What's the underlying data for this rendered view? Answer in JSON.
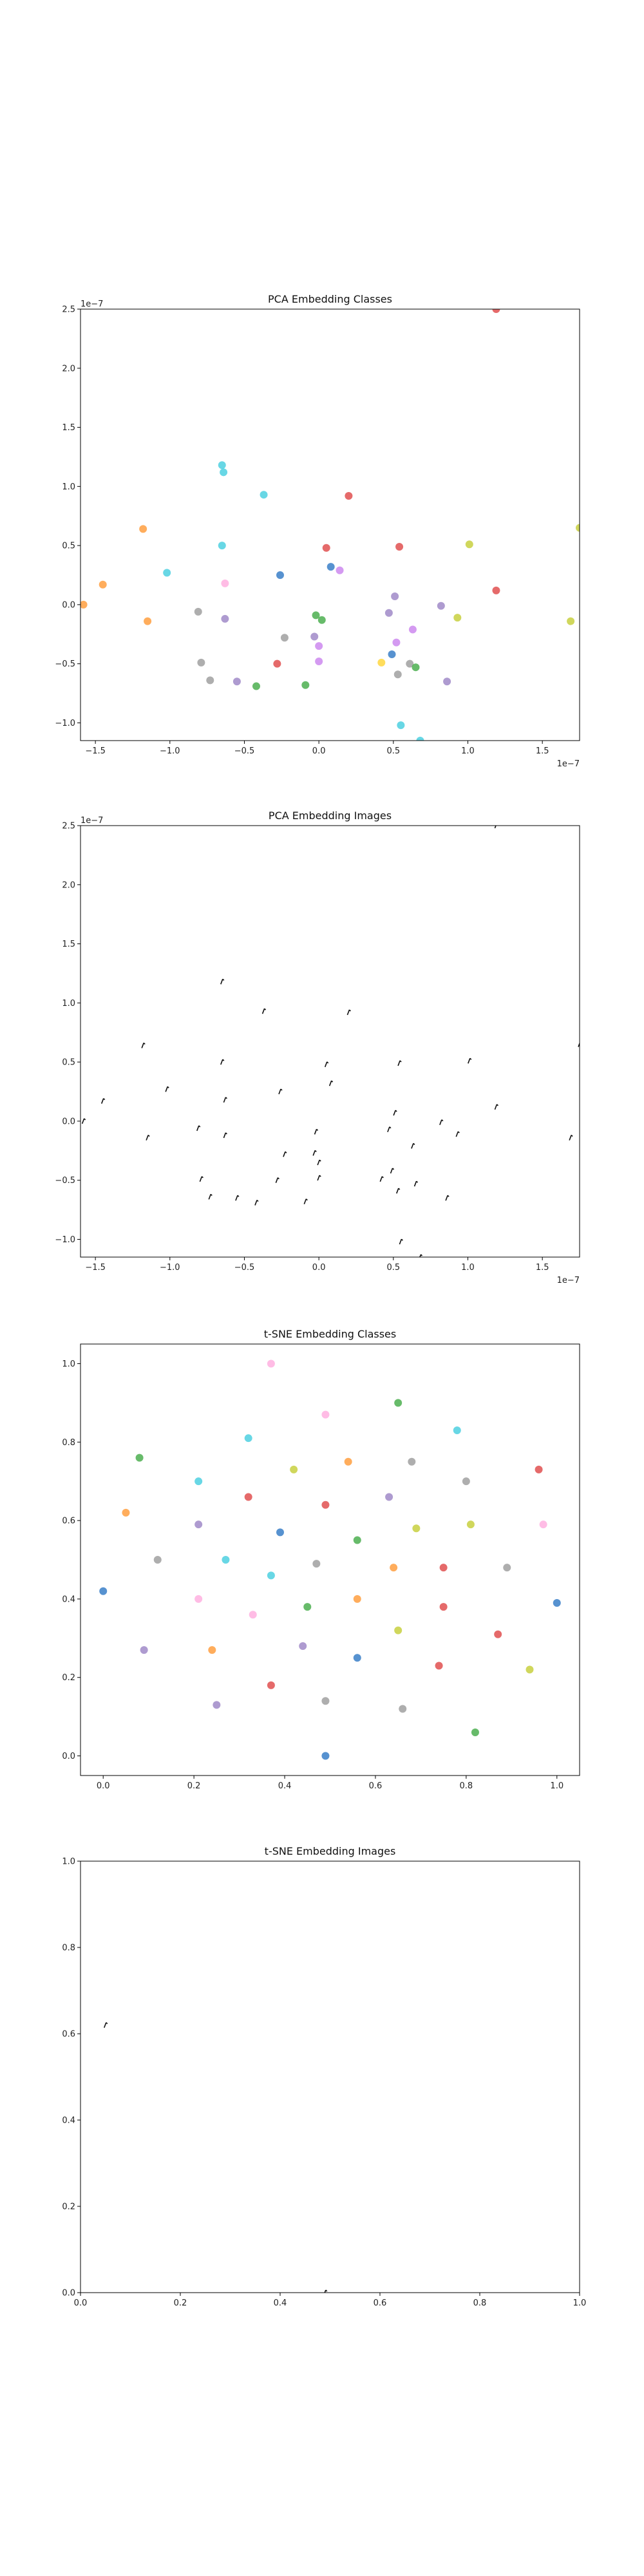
{
  "chart_data": [
    {
      "type": "scatter",
      "title": "PCA Embedding Classes",
      "xlabel": "",
      "ylabel": "",
      "xlim": [
        -1.6e-07,
        1.75e-07
      ],
      "ylim": [
        -1.15e-07,
        2.5e-07
      ],
      "xticks": [
        -1.5e-07,
        -1e-07,
        -5e-08,
        0,
        5e-08,
        1e-07,
        1.5e-07
      ],
      "xtick_labels": [
        "−1.5",
        "−1.0",
        "−0.5",
        "0.0",
        "0.5",
        "1.0",
        "1.5"
      ],
      "yticks": [
        -1e-07,
        -5e-08,
        0,
        5e-08,
        1e-07,
        1.5e-07,
        2e-07,
        2.5e-07
      ],
      "ytick_labels": [
        "−1.0",
        "−0.5",
        "0.0",
        "0.5",
        "1.0",
        "1.5",
        "2.0",
        "2.5"
      ],
      "x_offset_label": "1e−7",
      "y_offset_label": "1e−7",
      "grid": false,
      "marker": "dot",
      "points": [
        {
          "x": -1.58,
          "y": 0.0,
          "c": "#ff9f40"
        },
        {
          "x": -1.45,
          "y": 0.17,
          "c": "#ff9f40"
        },
        {
          "x": -1.18,
          "y": 0.64,
          "c": "#ff9f40"
        },
        {
          "x": -1.15,
          "y": -0.14,
          "c": "#ff9f40"
        },
        {
          "x": -1.02,
          "y": 0.27,
          "c": "#4dd0e1"
        },
        {
          "x": -0.81,
          "y": -0.06,
          "c": "#a0a0a0"
        },
        {
          "x": -0.79,
          "y": -0.49,
          "c": "#a0a0a0"
        },
        {
          "x": -0.73,
          "y": -0.64,
          "c": "#a0a0a0"
        },
        {
          "x": -0.65,
          "y": 1.18,
          "c": "#4dd0e1"
        },
        {
          "x": -0.64,
          "y": 1.12,
          "c": "#4dd0e1"
        },
        {
          "x": -0.65,
          "y": 0.5,
          "c": "#4dd0e1"
        },
        {
          "x": -0.63,
          "y": 0.18,
          "c": "#ffb0e0"
        },
        {
          "x": -0.63,
          "y": -0.12,
          "c": "#a089c8"
        },
        {
          "x": -0.55,
          "y": -0.65,
          "c": "#a089c8"
        },
        {
          "x": -0.42,
          "y": -0.69,
          "c": "#4caf50"
        },
        {
          "x": -0.37,
          "y": 0.93,
          "c": "#4dd0e1"
        },
        {
          "x": -0.28,
          "y": -0.5,
          "c": "#e05050"
        },
        {
          "x": -0.26,
          "y": 0.25,
          "c": "#3a7fc8"
        },
        {
          "x": -0.23,
          "y": -0.28,
          "c": "#a0a0a0"
        },
        {
          "x": -0.09,
          "y": -0.68,
          "c": "#4caf50"
        },
        {
          "x": -0.03,
          "y": -0.27,
          "c": "#a089c8"
        },
        {
          "x": -0.02,
          "y": -0.09,
          "c": "#4caf50"
        },
        {
          "x": 0.0,
          "y": -0.35,
          "c": "#cc88ee"
        },
        {
          "x": 0.0,
          "y": -0.48,
          "c": "#cc88ee"
        },
        {
          "x": 0.02,
          "y": -0.13,
          "c": "#4caf50"
        },
        {
          "x": 0.05,
          "y": 0.48,
          "c": "#e05050"
        },
        {
          "x": 0.08,
          "y": 0.32,
          "c": "#3a7fc8"
        },
        {
          "x": 0.14,
          "y": 0.29,
          "c": "#cc88ee"
        },
        {
          "x": 0.2,
          "y": 0.92,
          "c": "#e05050"
        },
        {
          "x": 0.42,
          "y": -0.49,
          "c": "#ffd740"
        },
        {
          "x": 0.47,
          "y": -0.07,
          "c": "#a089c8"
        },
        {
          "x": 0.49,
          "y": -0.42,
          "c": "#3a7fc8"
        },
        {
          "x": 0.51,
          "y": 0.07,
          "c": "#a089c8"
        },
        {
          "x": 0.52,
          "y": -0.32,
          "c": "#cc88ee"
        },
        {
          "x": 0.53,
          "y": -0.59,
          "c": "#a0a0a0"
        },
        {
          "x": 0.54,
          "y": 0.49,
          "c": "#e05050"
        },
        {
          "x": 0.55,
          "y": -1.02,
          "c": "#4dd0e1"
        },
        {
          "x": 0.61,
          "y": -0.5,
          "c": "#a0a0a0"
        },
        {
          "x": 0.63,
          "y": -0.21,
          "c": "#cc88ee"
        },
        {
          "x": 0.65,
          "y": -0.53,
          "c": "#4caf50"
        },
        {
          "x": 0.68,
          "y": -1.15,
          "c": "#4dd0e1"
        },
        {
          "x": 0.82,
          "y": -0.01,
          "c": "#a089c8"
        },
        {
          "x": 0.86,
          "y": -0.65,
          "c": "#a089c8"
        },
        {
          "x": 0.93,
          "y": -0.11,
          "c": "#c8d040"
        },
        {
          "x": 1.01,
          "y": 0.51,
          "c": "#c8d040"
        },
        {
          "x": 1.19,
          "y": 0.12,
          "c": "#e05050"
        },
        {
          "x": 1.19,
          "y": 2.5,
          "c": "#e05050"
        },
        {
          "x": 1.69,
          "y": -0.14,
          "c": "#c8d040"
        },
        {
          "x": 1.75,
          "y": 0.65,
          "c": "#c8d040"
        }
      ]
    },
    {
      "type": "scatter",
      "title": "PCA Embedding Images",
      "xlabel": "",
      "ylabel": "",
      "xlim": [
        -1.6e-07,
        1.75e-07
      ],
      "ylim": [
        -1.15e-07,
        2.5e-07
      ],
      "xticks": [
        -1.5e-07,
        -1e-07,
        -5e-08,
        0,
        5e-08,
        1e-07,
        1.5e-07
      ],
      "xtick_labels": [
        "−1.5",
        "−1.0",
        "−0.5",
        "0.0",
        "0.5",
        "1.0",
        "1.5"
      ],
      "yticks": [
        -1e-07,
        -5e-08,
        0,
        5e-08,
        1e-07,
        1.5e-07,
        2e-07,
        2.5e-07
      ],
      "ytick_labels": [
        "−1.0",
        "−0.5",
        "0.0",
        "0.5",
        "1.0",
        "1.5",
        "2.0",
        "2.5"
      ],
      "x_offset_label": "1e−7",
      "y_offset_label": "1e−7",
      "grid": false,
      "marker": "image-glyph",
      "points": [
        {
          "x": -1.58,
          "y": 0.0
        },
        {
          "x": -1.45,
          "y": 0.17
        },
        {
          "x": -1.18,
          "y": 0.64
        },
        {
          "x": -1.15,
          "y": -0.14
        },
        {
          "x": -1.02,
          "y": 0.27
        },
        {
          "x": -0.81,
          "y": -0.06
        },
        {
          "x": -0.79,
          "y": -0.49
        },
        {
          "x": -0.73,
          "y": -0.64
        },
        {
          "x": -0.65,
          "y": 1.18
        },
        {
          "x": -0.65,
          "y": 0.5
        },
        {
          "x": -0.63,
          "y": 0.18
        },
        {
          "x": -0.63,
          "y": -0.12
        },
        {
          "x": -0.55,
          "y": -0.65
        },
        {
          "x": -0.42,
          "y": -0.69
        },
        {
          "x": -0.37,
          "y": 0.93
        },
        {
          "x": -0.28,
          "y": -0.5
        },
        {
          "x": -0.26,
          "y": 0.25
        },
        {
          "x": -0.23,
          "y": -0.28
        },
        {
          "x": -0.09,
          "y": -0.68
        },
        {
          "x": -0.03,
          "y": -0.27
        },
        {
          "x": -0.02,
          "y": -0.09
        },
        {
          "x": 0.0,
          "y": -0.35
        },
        {
          "x": 0.0,
          "y": -0.48
        },
        {
          "x": 0.05,
          "y": 0.48
        },
        {
          "x": 0.08,
          "y": 0.32
        },
        {
          "x": 0.2,
          "y": 0.92
        },
        {
          "x": 0.42,
          "y": -0.49
        },
        {
          "x": 0.47,
          "y": -0.07
        },
        {
          "x": 0.49,
          "y": -0.42
        },
        {
          "x": 0.51,
          "y": 0.07
        },
        {
          "x": 0.53,
          "y": -0.59
        },
        {
          "x": 0.54,
          "y": 0.49
        },
        {
          "x": 0.55,
          "y": -1.02
        },
        {
          "x": 0.63,
          "y": -0.21
        },
        {
          "x": 0.65,
          "y": -0.53
        },
        {
          "x": 0.68,
          "y": -1.15
        },
        {
          "x": 0.82,
          "y": -0.01
        },
        {
          "x": 0.86,
          "y": -0.65
        },
        {
          "x": 0.93,
          "y": -0.11
        },
        {
          "x": 1.01,
          "y": 0.51
        },
        {
          "x": 1.19,
          "y": 0.12
        },
        {
          "x": 1.19,
          "y": 2.5
        },
        {
          "x": 1.69,
          "y": -0.14
        },
        {
          "x": 1.75,
          "y": 0.65
        }
      ]
    },
    {
      "type": "scatter",
      "title": "t-SNE Embedding Classes",
      "xlabel": "",
      "ylabel": "",
      "xlim": [
        -0.05,
        1.05
      ],
      "ylim": [
        -0.05,
        1.05
      ],
      "xticks": [
        0.0,
        0.2,
        0.4,
        0.6,
        0.8,
        1.0
      ],
      "xtick_labels": [
        "0.0",
        "0.2",
        "0.4",
        "0.6",
        "0.8",
        "1.0"
      ],
      "yticks": [
        0.0,
        0.2,
        0.4,
        0.6,
        0.8,
        1.0
      ],
      "ytick_labels": [
        "0.0",
        "0.2",
        "0.4",
        "0.6",
        "0.8",
        "1.0"
      ],
      "grid": false,
      "marker": "dot",
      "points": [
        {
          "x": 0.0,
          "y": 0.42,
          "c": "#3a7fc8"
        },
        {
          "x": 0.05,
          "y": 0.62,
          "c": "#ff9f40"
        },
        {
          "x": 0.08,
          "y": 0.76,
          "c": "#4caf50"
        },
        {
          "x": 0.09,
          "y": 0.27,
          "c": "#a089c8"
        },
        {
          "x": 0.12,
          "y": 0.5,
          "c": "#a0a0a0"
        },
        {
          "x": 0.21,
          "y": 0.59,
          "c": "#a089c8"
        },
        {
          "x": 0.21,
          "y": 0.4,
          "c": "#ffb0e0"
        },
        {
          "x": 0.21,
          "y": 0.7,
          "c": "#4dd0e1"
        },
        {
          "x": 0.24,
          "y": 0.27,
          "c": "#ff9f40"
        },
        {
          "x": 0.25,
          "y": 0.13,
          "c": "#a089c8"
        },
        {
          "x": 0.27,
          "y": 0.5,
          "c": "#4dd0e1"
        },
        {
          "x": 0.32,
          "y": 0.81,
          "c": "#4dd0e1"
        },
        {
          "x": 0.32,
          "y": 0.66,
          "c": "#e05050"
        },
        {
          "x": 0.33,
          "y": 0.36,
          "c": "#ffb0e0"
        },
        {
          "x": 0.37,
          "y": 1.0,
          "c": "#ffb0e0"
        },
        {
          "x": 0.37,
          "y": 0.46,
          "c": "#4dd0e1"
        },
        {
          "x": 0.37,
          "y": 0.18,
          "c": "#e05050"
        },
        {
          "x": 0.39,
          "y": 0.57,
          "c": "#3a7fc8"
        },
        {
          "x": 0.42,
          "y": 0.73,
          "c": "#c8d040"
        },
        {
          "x": 0.44,
          "y": 0.28,
          "c": "#a089c8"
        },
        {
          "x": 0.45,
          "y": 0.38,
          "c": "#4caf50"
        },
        {
          "x": 0.47,
          "y": 0.49,
          "c": "#a0a0a0"
        },
        {
          "x": 0.49,
          "y": 0.87,
          "c": "#ffb0e0"
        },
        {
          "x": 0.49,
          "y": 0.64,
          "c": "#e05050"
        },
        {
          "x": 0.49,
          "y": 0.14,
          "c": "#a0a0a0"
        },
        {
          "x": 0.49,
          "y": 0.0,
          "c": "#3a7fc8"
        },
        {
          "x": 0.54,
          "y": 0.75,
          "c": "#ff9f40"
        },
        {
          "x": 0.56,
          "y": 0.55,
          "c": "#4caf50"
        },
        {
          "x": 0.56,
          "y": 0.4,
          "c": "#ff9f40"
        },
        {
          "x": 0.56,
          "y": 0.25,
          "c": "#3a7fc8"
        },
        {
          "x": 0.63,
          "y": 0.66,
          "c": "#a089c8"
        },
        {
          "x": 0.64,
          "y": 0.48,
          "c": "#ff9f40"
        },
        {
          "x": 0.65,
          "y": 0.9,
          "c": "#4caf50"
        },
        {
          "x": 0.65,
          "y": 0.32,
          "c": "#c8d040"
        },
        {
          "x": 0.66,
          "y": 0.12,
          "c": "#a0a0a0"
        },
        {
          "x": 0.68,
          "y": 0.75,
          "c": "#a0a0a0"
        },
        {
          "x": 0.69,
          "y": 0.58,
          "c": "#c8d040"
        },
        {
          "x": 0.74,
          "y": 0.23,
          "c": "#e05050"
        },
        {
          "x": 0.75,
          "y": 0.48,
          "c": "#e05050"
        },
        {
          "x": 0.75,
          "y": 0.38,
          "c": "#e05050"
        },
        {
          "x": 0.78,
          "y": 0.83,
          "c": "#4dd0e1"
        },
        {
          "x": 0.8,
          "y": 0.7,
          "c": "#a0a0a0"
        },
        {
          "x": 0.81,
          "y": 0.59,
          "c": "#c8d040"
        },
        {
          "x": 0.82,
          "y": 0.06,
          "c": "#4caf50"
        },
        {
          "x": 0.89,
          "y": 0.48,
          "c": "#a0a0a0"
        },
        {
          "x": 0.87,
          "y": 0.31,
          "c": "#e05050"
        },
        {
          "x": 0.94,
          "y": 0.22,
          "c": "#c8d040"
        },
        {
          "x": 0.96,
          "y": 0.73,
          "c": "#e05050"
        },
        {
          "x": 0.97,
          "y": 0.59,
          "c": "#ffb0e0"
        },
        {
          "x": 1.0,
          "y": 0.39,
          "c": "#3a7fc8"
        }
      ]
    },
    {
      "type": "scatter",
      "title": "t-SNE Embedding Images",
      "xlabel": "",
      "ylabel": "",
      "xlim": [
        0.0,
        1.0
      ],
      "ylim": [
        0.0,
        1.0
      ],
      "xticks": [
        0.0,
        0.2,
        0.4,
        0.6,
        0.8,
        1.0
      ],
      "xtick_labels": [
        "0.0",
        "0.2",
        "0.4",
        "0.6",
        "0.8",
        "1.0"
      ],
      "yticks": [
        0.0,
        0.2,
        0.4,
        0.6,
        0.8,
        1.0
      ],
      "ytick_labels": [
        "0.0",
        "0.2",
        "0.4",
        "0.6",
        "0.8",
        "1.0"
      ],
      "grid": false,
      "marker": "image-glyph",
      "points": [
        {
          "x": 0.05,
          "y": 0.62
        },
        {
          "x": 0.49,
          "y": 0.0
        }
      ]
    }
  ]
}
